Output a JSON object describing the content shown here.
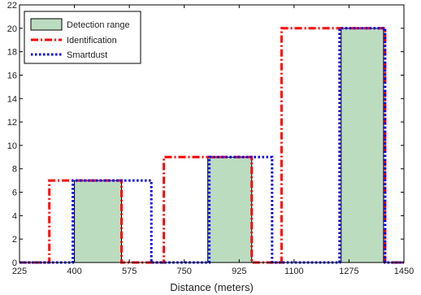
{
  "chart_data": {
    "type": "bar",
    "title": "",
    "xlabel": "Distance (meters)",
    "ylabel": "",
    "xlim": [
      225,
      1450
    ],
    "ylim": [
      0,
      22
    ],
    "xticks": [
      225,
      400,
      575,
      750,
      925,
      1100,
      1275,
      1450
    ],
    "yticks": [
      0,
      2,
      4,
      6,
      8,
      10,
      12,
      14,
      16,
      18,
      20,
      22
    ],
    "grid": false,
    "legend_position": "top-left",
    "series": [
      {
        "name": "Detection range",
        "style": "filled",
        "color": "#bcdcc0",
        "edge": "#000000",
        "bars": [
          {
            "x0": 400,
            "x1": 550,
            "y": 7
          },
          {
            "x0": 825,
            "x1": 965,
            "y": 9
          },
          {
            "x0": 1250,
            "x1": 1385,
            "y": 20
          }
        ]
      },
      {
        "name": "Identification",
        "style": "dashdot",
        "color": "#ff0000",
        "points": [
          [
            225,
            0
          ],
          [
            320,
            0
          ],
          [
            320,
            7
          ],
          [
            550,
            7
          ],
          [
            550,
            0
          ],
          [
            685,
            0
          ],
          [
            685,
            9
          ],
          [
            965,
            9
          ],
          [
            965,
            0
          ],
          [
            1060,
            0
          ],
          [
            1060,
            20
          ],
          [
            1390,
            20
          ],
          [
            1390,
            0
          ],
          [
            1450,
            0
          ]
        ]
      },
      {
        "name": "Smartdust",
        "style": "dotted",
        "color": "#0000ff",
        "points": [
          [
            225,
            0
          ],
          [
            395,
            0
          ],
          [
            395,
            7
          ],
          [
            645,
            7
          ],
          [
            645,
            0
          ],
          [
            830,
            0
          ],
          [
            830,
            9
          ],
          [
            1030,
            9
          ],
          [
            1030,
            0
          ],
          [
            1245,
            0
          ],
          [
            1245,
            20
          ],
          [
            1390,
            20
          ],
          [
            1390,
            0
          ],
          [
            1450,
            0
          ]
        ]
      }
    ]
  }
}
